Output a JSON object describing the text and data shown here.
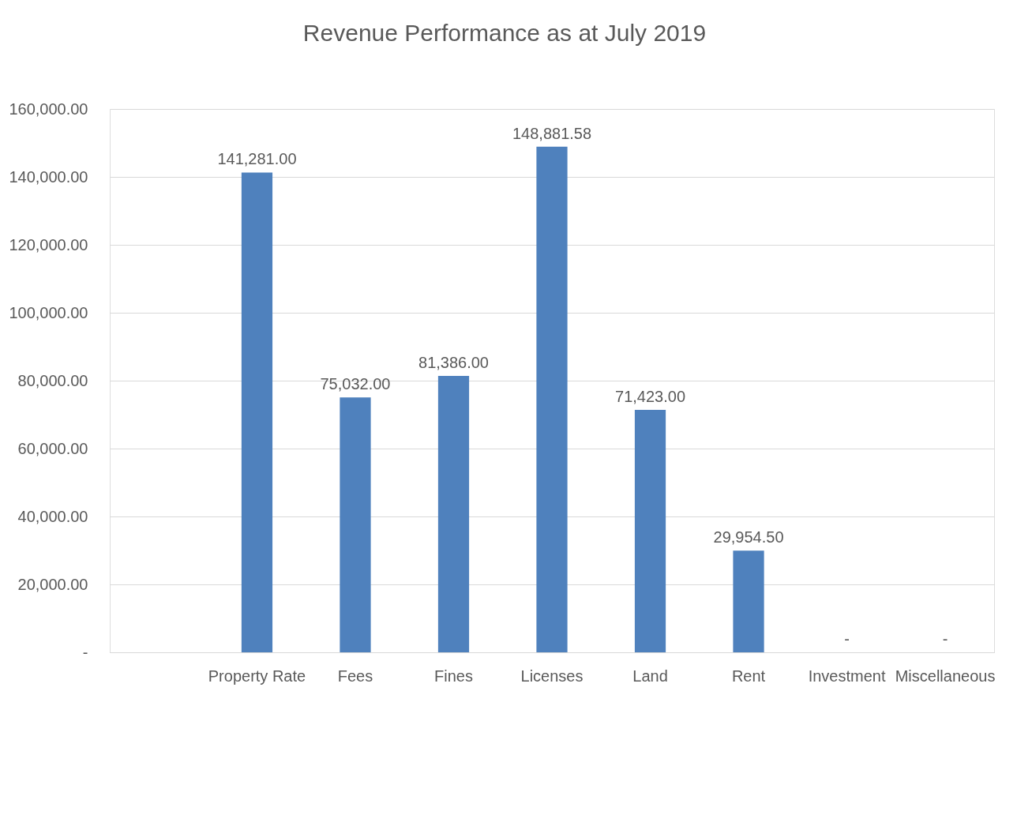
{
  "chart_data": {
    "type": "bar",
    "title": "Revenue Performance as at July 2019",
    "categories": [
      null,
      "Property Rate",
      "Fees",
      "Fines",
      "Licenses",
      "Land",
      "Rent",
      "Investment",
      "Miscellaneous"
    ],
    "values": [
      null,
      141281.0,
      75032.0,
      81386.0,
      148881.58,
      71423.0,
      29954.5,
      0,
      0
    ],
    "value_labels": [
      null,
      "141,281.00",
      "75,032.00",
      "81,386.00",
      "148,881.58",
      "71,423.00",
      "29,954.50",
      "-",
      "-"
    ],
    "color": "#4f81bd",
    "ylim": [
      0,
      160000
    ],
    "yticks": [
      {
        "value": 0,
        "label": "-"
      },
      {
        "value": 20000,
        "label": "20,000.00"
      },
      {
        "value": 40000,
        "label": "40,000.00"
      },
      {
        "value": 60000,
        "label": "60,000.00"
      },
      {
        "value": 80000,
        "label": "80,000.00"
      },
      {
        "value": 100000,
        "label": "100,000.00"
      },
      {
        "value": 120000,
        "label": "120,000.00"
      },
      {
        "value": 140000,
        "label": "140,000.00"
      },
      {
        "value": 160000,
        "label": "160,000.00"
      }
    ],
    "grid": "y"
  }
}
